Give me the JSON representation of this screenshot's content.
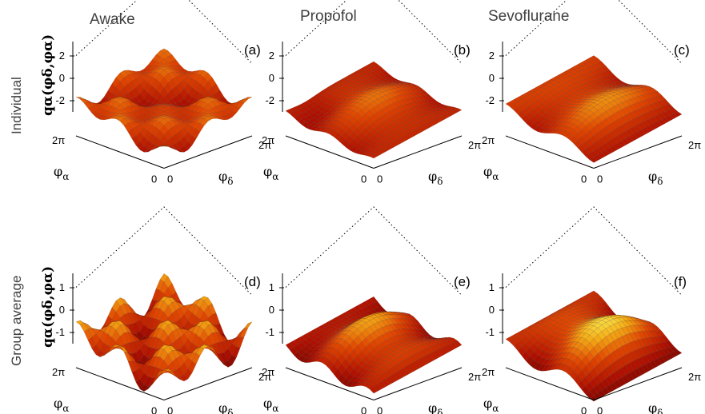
{
  "column_titles": [
    "Awake",
    "Propofol",
    "Sevoflurane"
  ],
  "row_titles": [
    "Individual",
    "Group average"
  ],
  "chart_data": [
    {
      "type": "surface",
      "panel_label": "(a)",
      "xlabel": "φδ",
      "ylabel": "φα",
      "zlabel": "qα(φδ,φα)",
      "x_ticks": [
        "0",
        "2π"
      ],
      "y_ticks": [
        "0",
        "2π"
      ],
      "z_ticks": [
        "2",
        "0",
        "-2"
      ],
      "zlim": [
        -3,
        3
      ],
      "colormap": "hot",
      "grid": true
    },
    {
      "type": "surface",
      "panel_label": "(b)",
      "xlabel": "φδ",
      "ylabel": "φα",
      "x_ticks": [
        "0",
        "2π"
      ],
      "y_ticks": [
        "0",
        "2π"
      ],
      "z_ticks": [
        "2",
        "0",
        "-2"
      ],
      "zlim": [
        -3,
        3
      ],
      "colormap": "hot",
      "grid": true
    },
    {
      "type": "surface",
      "panel_label": "(c)",
      "xlabel": "φδ",
      "ylabel": "φα",
      "x_ticks": [
        "0",
        "2π"
      ],
      "y_ticks": [
        "0",
        "2π"
      ],
      "z_ticks": [
        "2",
        "0",
        "-2"
      ],
      "zlim": [
        -3,
        3
      ],
      "colormap": "hot",
      "grid": true
    },
    {
      "type": "surface",
      "panel_label": "(d)",
      "xlabel": "φδ",
      "ylabel": "φα",
      "zlabel": "qα(φδ,φα)",
      "x_ticks": [
        "0",
        "2π"
      ],
      "y_ticks": [
        "0",
        "2π"
      ],
      "z_ticks": [
        "1",
        "0",
        "-1"
      ],
      "zlim": [
        -1.5,
        1.5
      ],
      "colormap": "hot",
      "grid": true
    },
    {
      "type": "surface",
      "panel_label": "(e)",
      "xlabel": "φδ",
      "ylabel": "φα",
      "x_ticks": [
        "0",
        "2π"
      ],
      "y_ticks": [
        "0",
        "2π"
      ],
      "z_ticks": [
        "1",
        "0",
        "-1"
      ],
      "zlim": [
        -1.5,
        1.5
      ],
      "colormap": "hot",
      "grid": true
    },
    {
      "type": "surface",
      "panel_label": "(f)",
      "xlabel": "φδ",
      "ylabel": "φα",
      "x_ticks": [
        "0",
        "2π"
      ],
      "y_ticks": [
        "0",
        "2π"
      ],
      "z_ticks": [
        "1",
        "0",
        "-1"
      ],
      "zlim": [
        -1.5,
        1.5
      ],
      "colormap": "hot",
      "grid": true
    }
  ]
}
